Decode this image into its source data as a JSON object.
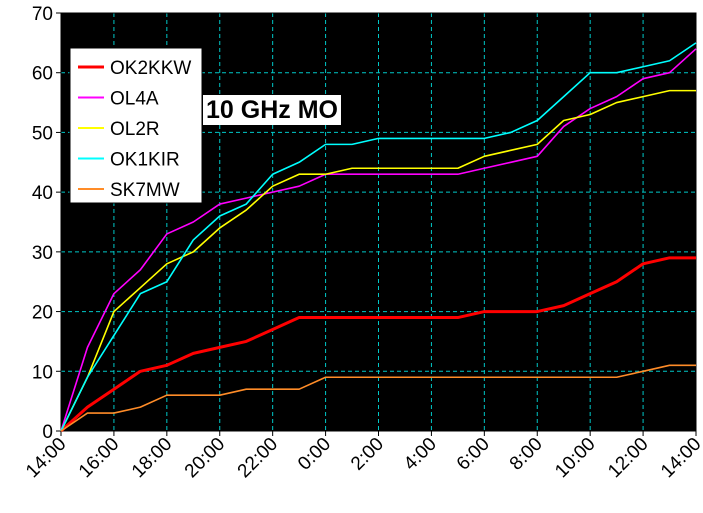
{
  "chart_data": {
    "type": "line",
    "title": "10 GHz MO",
    "xlabel": "",
    "ylabel": "",
    "x_ticks": [
      "14:00",
      "16:00",
      "18:00",
      "20:00",
      "22:00",
      "0:00",
      "2:00",
      "4:00",
      "6:00",
      "8:00",
      "10:00",
      "12:00",
      "14:00"
    ],
    "x_hours": [
      0,
      24
    ],
    "ylim": [
      0,
      70
    ],
    "y_ticks": [
      0,
      10,
      20,
      30,
      40,
      50,
      60,
      70
    ],
    "grid": true,
    "legend_position": "top-left",
    "plot_background": "#000000",
    "grid_color": "#00c8c8",
    "series": [
      {
        "name": "OK2KKW",
        "color": "#ff0000",
        "x": [
          0,
          1,
          2,
          3,
          4,
          5,
          6,
          7,
          8,
          9,
          10,
          11,
          12,
          13,
          14,
          15,
          16,
          17,
          18,
          19,
          20,
          21,
          22,
          23,
          24
        ],
        "y": [
          0,
          4,
          7,
          10,
          11,
          13,
          14,
          15,
          17,
          19,
          19,
          19,
          19,
          19,
          19,
          19,
          20,
          20,
          20,
          21,
          23,
          25,
          28,
          29,
          29
        ]
      },
      {
        "name": "OL4A",
        "color": "#ff00ff",
        "x": [
          0,
          1,
          2,
          3,
          4,
          5,
          6,
          7,
          8,
          9,
          10,
          11,
          12,
          13,
          14,
          15,
          16,
          17,
          18,
          19,
          20,
          21,
          22,
          23,
          24
        ],
        "y": [
          0,
          14,
          23,
          27,
          33,
          35,
          38,
          39,
          40,
          41,
          43,
          43,
          43,
          43,
          43,
          43,
          44,
          45,
          46,
          51,
          54,
          56,
          59,
          60,
          64
        ]
      },
      {
        "name": "OL2R",
        "color": "#ffff00",
        "x": [
          0,
          1,
          2,
          3,
          4,
          5,
          6,
          7,
          8,
          9,
          10,
          11,
          12,
          13,
          14,
          15,
          16,
          17,
          18,
          19,
          20,
          21,
          22,
          23,
          24
        ],
        "y": [
          0,
          9,
          20,
          24,
          28,
          30,
          34,
          37,
          41,
          43,
          43,
          44,
          44,
          44,
          44,
          44,
          46,
          47,
          48,
          52,
          53,
          55,
          56,
          57,
          57
        ]
      },
      {
        "name": "OK1KIR",
        "color": "#00ffff",
        "x": [
          0,
          1,
          2,
          3,
          4,
          5,
          6,
          7,
          8,
          9,
          10,
          11,
          12,
          13,
          14,
          15,
          16,
          17,
          18,
          19,
          20,
          21,
          22,
          23,
          24
        ],
        "y": [
          0,
          9,
          16,
          23,
          25,
          32,
          36,
          38,
          43,
          45,
          48,
          48,
          49,
          49,
          49,
          49,
          49,
          50,
          52,
          56,
          60,
          60,
          61,
          62,
          65
        ]
      },
      {
        "name": "SK7MW",
        "color": "#ff8c28",
        "x": [
          0,
          1,
          2,
          3,
          4,
          5,
          6,
          7,
          8,
          9,
          10,
          11,
          12,
          13,
          14,
          15,
          16,
          17,
          18,
          19,
          20,
          21,
          22,
          23,
          24
        ],
        "y": [
          0,
          3,
          3,
          4,
          6,
          6,
          6,
          7,
          7,
          7,
          9,
          9,
          9,
          9,
          9,
          9,
          9,
          9,
          9,
          9,
          9,
          9,
          10,
          11,
          11
        ]
      }
    ]
  }
}
